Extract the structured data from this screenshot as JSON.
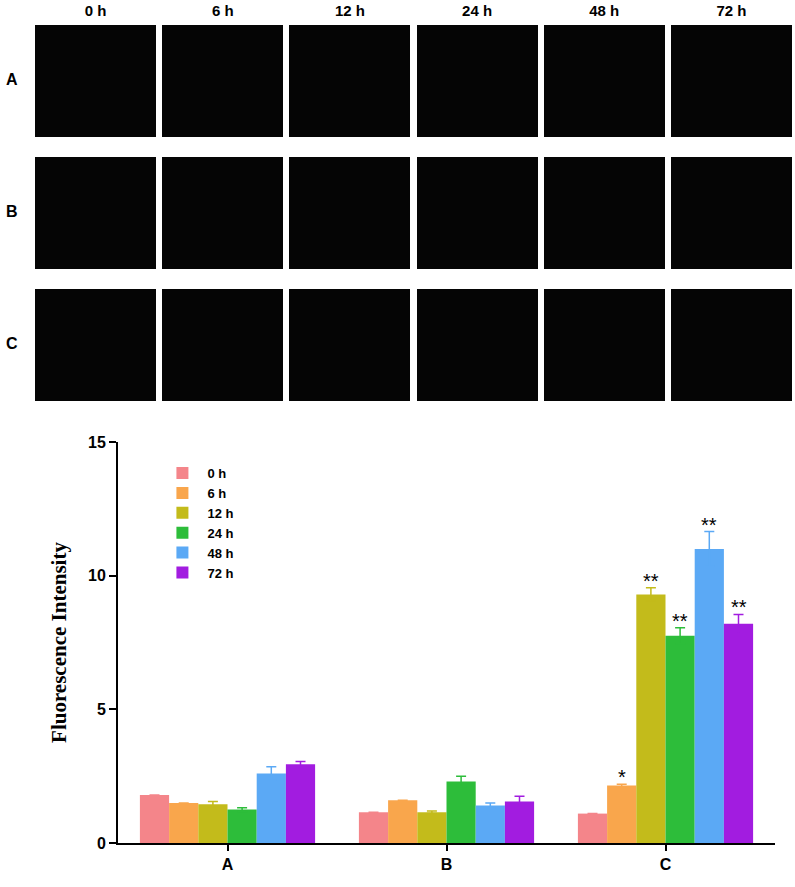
{
  "image_panels": {
    "columns": [
      "0 h",
      "6 h",
      "12 h",
      "24 h",
      "48 h",
      "72 h"
    ],
    "rows": [
      "A",
      "B",
      "C"
    ]
  },
  "chart_data": {
    "type": "bar",
    "y_label": "Fluorescence Intensity",
    "categories": [
      "A",
      "B",
      "C"
    ],
    "series": [
      {
        "name": "0 h",
        "color": "#f4858a",
        "values": [
          1.8,
          1.15,
          1.1
        ],
        "errors": [
          0,
          0,
          0
        ],
        "significance": [
          null,
          null,
          null
        ]
      },
      {
        "name": "6 h",
        "color": "#f9a64c",
        "values": [
          1.5,
          1.6,
          2.15
        ],
        "errors": [
          0,
          0,
          0.05
        ],
        "significance": [
          null,
          null,
          "*"
        ]
      },
      {
        "name": "12 h",
        "color": "#c3bb1b",
        "values": [
          1.45,
          1.15,
          9.3
        ],
        "errors": [
          0.1,
          0.05,
          0.25
        ],
        "significance": [
          null,
          null,
          "**"
        ]
      },
      {
        "name": "24 h",
        "color": "#2dbd3a",
        "values": [
          1.25,
          2.3,
          7.75
        ],
        "errors": [
          0.07,
          0.2,
          0.3
        ],
        "significance": [
          null,
          null,
          "**"
        ]
      },
      {
        "name": "48 h",
        "color": "#5ba9f5",
        "values": [
          2.6,
          1.4,
          11.0
        ],
        "errors": [
          0.25,
          0.1,
          0.65
        ],
        "significance": [
          null,
          null,
          "**"
        ]
      },
      {
        "name": "72 h",
        "color": "#a21ce0",
        "values": [
          2.95,
          1.55,
          8.2
        ],
        "errors": [
          0.1,
          0.2,
          0.35
        ],
        "significance": [
          null,
          null,
          "**"
        ]
      }
    ],
    "ylim": [
      0,
      15
    ],
    "yticks": [
      0,
      5,
      10,
      15
    ],
    "grid": false,
    "legend": "upper left"
  }
}
